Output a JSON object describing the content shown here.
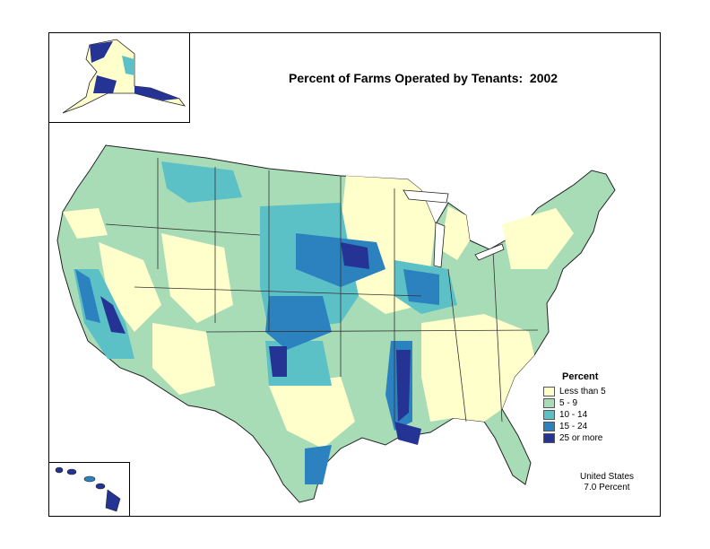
{
  "title": "Percent of Farms Operated by Tenants:  2002",
  "legend": {
    "title": "Percent",
    "items": [
      {
        "label": "Less than 5",
        "color": "#ffffcc"
      },
      {
        "label": "5 - 9",
        "color": "#a8dcb6"
      },
      {
        "label": "10 - 14",
        "color": "#5cc0c7"
      },
      {
        "label": "15 - 24",
        "color": "#2c82be"
      },
      {
        "label": "25 or more",
        "color": "#253494"
      }
    ]
  },
  "note": {
    "line1": "United States",
    "line2": "7.0 Percent"
  }
}
